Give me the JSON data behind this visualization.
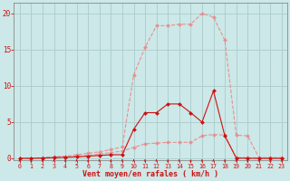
{
  "xlabel": "Vent moyen/en rafales ( km/h )",
  "background_color": "#cce8e8",
  "grid_color": "#aacccc",
  "x_ticks": [
    0,
    1,
    2,
    3,
    4,
    5,
    6,
    7,
    8,
    9,
    10,
    11,
    12,
    13,
    14,
    15,
    16,
    17,
    18,
    19,
    20,
    21,
    22,
    23
  ],
  "y_ticks": [
    0,
    5,
    10,
    15,
    20
  ],
  "xlim": [
    -0.5,
    23.5
  ],
  "ylim": [
    -0.3,
    21.5
  ],
  "curve_rafales_x": [
    0,
    1,
    2,
    3,
    4,
    5,
    6,
    7,
    8,
    9,
    10,
    11,
    12,
    13,
    14,
    15,
    16,
    17,
    18,
    19,
    20,
    21,
    22,
    23
  ],
  "curve_rafales_y": [
    0.0,
    0.0,
    0.1,
    0.2,
    0.3,
    0.5,
    0.7,
    0.9,
    1.2,
    1.6,
    11.5,
    15.3,
    18.3,
    18.3,
    18.5,
    18.5,
    20.0,
    19.5,
    16.3,
    3.2,
    3.1,
    0.1,
    0.1,
    0.1
  ],
  "curve_moyen_x": [
    0,
    1,
    2,
    3,
    4,
    5,
    6,
    7,
    8,
    9,
    10,
    11,
    12,
    13,
    14,
    15,
    16,
    17,
    18,
    19,
    20,
    21,
    22,
    23
  ],
  "curve_moyen_y": [
    0.0,
    0.0,
    0.05,
    0.1,
    0.2,
    0.3,
    0.4,
    0.6,
    0.8,
    1.0,
    1.5,
    2.0,
    2.1,
    2.2,
    2.2,
    2.2,
    3.1,
    3.3,
    3.2,
    0.1,
    0.1,
    0.05,
    0.05,
    0.0
  ],
  "curve_nb_x": [
    0,
    1,
    2,
    3,
    4,
    5,
    6,
    7,
    8,
    9,
    10,
    11,
    12,
    13,
    14,
    15,
    16,
    17,
    18,
    19,
    20,
    21,
    22,
    23
  ],
  "curve_nb_y": [
    0.0,
    0.0,
    0.05,
    0.1,
    0.15,
    0.2,
    0.3,
    0.4,
    0.5,
    0.5,
    4.0,
    6.3,
    6.3,
    7.5,
    7.5,
    6.3,
    5.0,
    9.3,
    3.1,
    0.05,
    0.0,
    0.0,
    0.0,
    0.0
  ],
  "color_light": "#e89090",
  "color_dark": "#cc1111",
  "lw": 0.8,
  "ms": 2.0,
  "tick_color": "#cc1111",
  "axis_color": "#888888",
  "xlabel_fontsize": 6.0,
  "tick_fontsize": 4.8,
  "ytick_fontsize": 5.5
}
